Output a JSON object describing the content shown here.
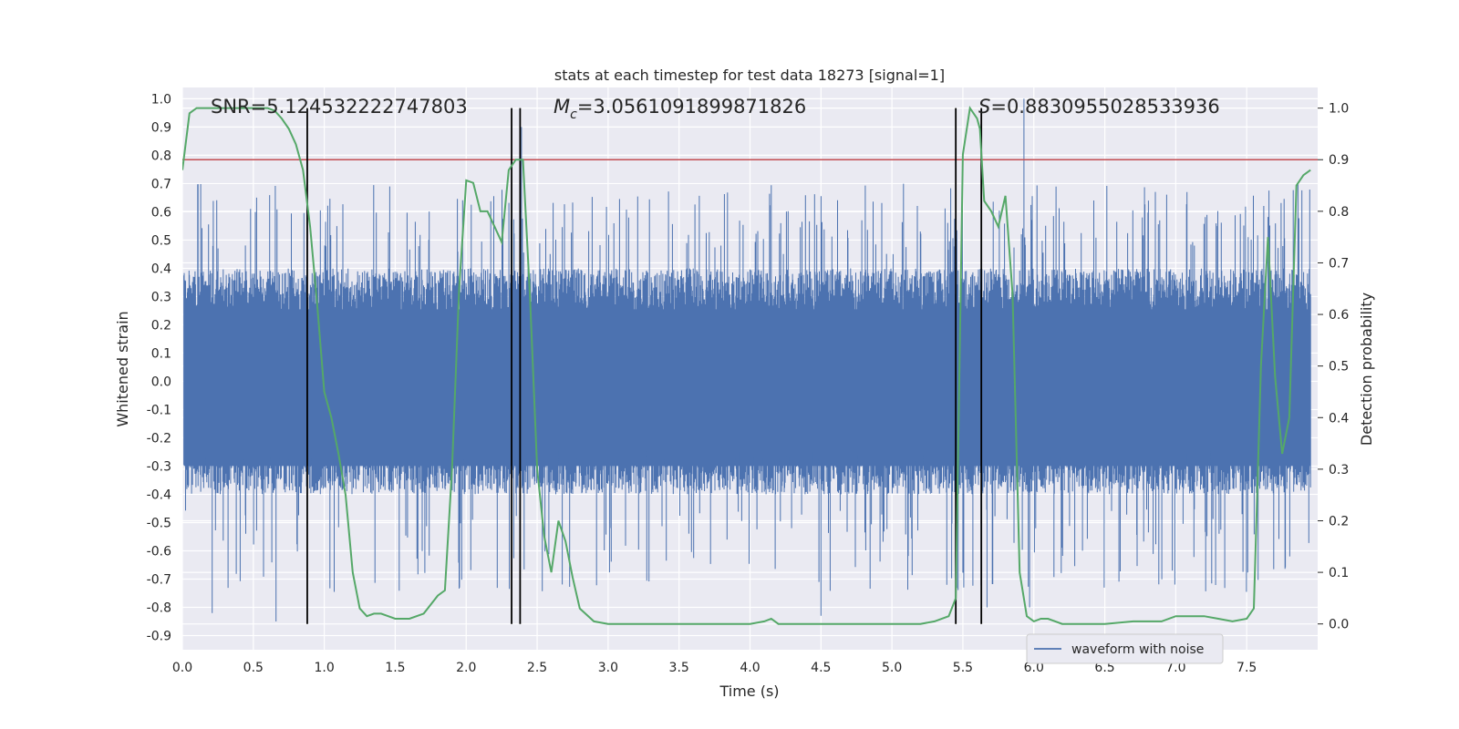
{
  "chart_data": {
    "type": "line",
    "title": "stats at each timestep for test data 18273 [signal=1]",
    "xlabel": "Time (s)",
    "ylabel": "Whitened strain",
    "y2label": "Detection probability",
    "xlim": [
      0.0,
      8.0
    ],
    "ylim": [
      -0.95,
      1.04
    ],
    "y2lim": [
      -0.05,
      1.04
    ],
    "xticks": [
      "0.0",
      "0.5",
      "1.0",
      "1.5",
      "2.0",
      "2.5",
      "3.0",
      "3.5",
      "4.0",
      "4.5",
      "5.0",
      "5.5",
      "6.0",
      "6.5",
      "7.0",
      "7.5"
    ],
    "yticks": [
      "1.0",
      "0.9",
      "0.8",
      "0.7",
      "0.6",
      "0.5",
      "0.4",
      "0.3",
      "0.2",
      "0.1",
      "0.0",
      "-0.1",
      "-0.2",
      "-0.3",
      "-0.4",
      "-0.5",
      "-0.6",
      "-0.7",
      "-0.8",
      "-0.9"
    ],
    "y2ticks": [
      "1.0",
      "0.9",
      "0.8",
      "0.7",
      "0.6",
      "0.5",
      "0.4",
      "0.3",
      "0.2",
      "0.1",
      "0.0"
    ],
    "grid": true,
    "legend_position": "lower-right",
    "colors": {
      "waveform": "#4c72b0",
      "probability": "#55a868",
      "threshold": "#c44e52",
      "markers": "#000000",
      "background": "#eaeaf2"
    },
    "annotations": {
      "snr": "SNR=5.124532222747803",
      "mc_prefix": "M",
      "mc_sub": "c",
      "mc_value": "=3.0561091899871826",
      "s_prefix": "S",
      "s_value": "=0.8830955028533936"
    },
    "series": [
      {
        "name": "waveform with noise",
        "axis": "left",
        "style": "dense-noise",
        "envelope": {
          "upper_band": 0.4,
          "lower_band": -0.4,
          "typical_peak": 0.7,
          "notable_peaks": [
            [
              2.39,
              0.9
            ],
            [
              5.93,
              1.0
            ],
            [
              0.66,
              -0.85
            ],
            [
              4.5,
              -0.83
            ],
            [
              5.67,
              -0.8
            ],
            [
              5.97,
              -0.8
            ],
            [
              0.21,
              -0.82
            ]
          ]
        }
      },
      {
        "name": "detection probability",
        "axis": "right",
        "x": [
          0.0,
          0.05,
          0.1,
          0.15,
          0.2,
          0.3,
          0.4,
          0.5,
          0.6,
          0.65,
          0.7,
          0.75,
          0.8,
          0.85,
          0.9,
          0.95,
          1.0,
          1.05,
          1.1,
          1.15,
          1.2,
          1.25,
          1.3,
          1.35,
          1.4,
          1.45,
          1.5,
          1.55,
          1.6,
          1.7,
          1.8,
          1.85,
          1.9,
          1.95,
          2.0,
          2.05,
          2.1,
          2.15,
          2.2,
          2.25,
          2.3,
          2.35,
          2.4,
          2.45,
          2.5,
          2.55,
          2.6,
          2.65,
          2.7,
          2.75,
          2.8,
          2.9,
          3.0,
          3.2,
          3.4,
          3.6,
          3.8,
          4.0,
          4.1,
          4.15,
          4.2,
          4.3,
          4.5,
          4.7,
          4.9,
          5.1,
          5.2,
          5.3,
          5.4,
          5.45,
          5.5,
          5.55,
          5.6,
          5.62,
          5.65,
          5.7,
          5.75,
          5.8,
          5.85,
          5.9,
          5.95,
          6.0,
          6.05,
          6.1,
          6.2,
          6.3,
          6.5,
          6.7,
          6.9,
          7.0,
          7.1,
          7.2,
          7.3,
          7.4,
          7.5,
          7.55,
          7.6,
          7.65,
          7.7,
          7.75,
          7.8,
          7.85,
          7.9,
          7.95
        ],
        "values": [
          0.88,
          0.99,
          1.0,
          1.0,
          1.0,
          1.0,
          1.0,
          1.0,
          1.0,
          0.995,
          0.98,
          0.96,
          0.93,
          0.88,
          0.77,
          0.62,
          0.45,
          0.4,
          0.33,
          0.25,
          0.1,
          0.03,
          0.015,
          0.02,
          0.02,
          0.015,
          0.01,
          0.01,
          0.01,
          0.02,
          0.055,
          0.065,
          0.3,
          0.65,
          0.86,
          0.855,
          0.8,
          0.8,
          0.77,
          0.74,
          0.88,
          0.9,
          0.9,
          0.63,
          0.3,
          0.17,
          0.1,
          0.2,
          0.16,
          0.09,
          0.03,
          0.005,
          0.0,
          0.0,
          0.0,
          0.0,
          0.0,
          0.0,
          0.005,
          0.01,
          0.0,
          0.0,
          0.0,
          0.0,
          0.0,
          0.0,
          0.0,
          0.005,
          0.015,
          0.05,
          0.91,
          1.0,
          0.98,
          0.96,
          0.82,
          0.8,
          0.77,
          0.83,
          0.64,
          0.1,
          0.015,
          0.005,
          0.01,
          0.01,
          0.0,
          0.0,
          0.0,
          0.005,
          0.005,
          0.015,
          0.015,
          0.015,
          0.01,
          0.005,
          0.01,
          0.03,
          0.5,
          0.75,
          0.48,
          0.33,
          0.4,
          0.85,
          0.87,
          0.88
        ]
      },
      {
        "name": "threshold",
        "axis": "right",
        "style": "horizontal-line",
        "values": [
          0.9
        ]
      }
    ],
    "marker_lines_x": [
      0.88,
      2.32,
      2.38,
      5.45,
      5.63
    ]
  }
}
